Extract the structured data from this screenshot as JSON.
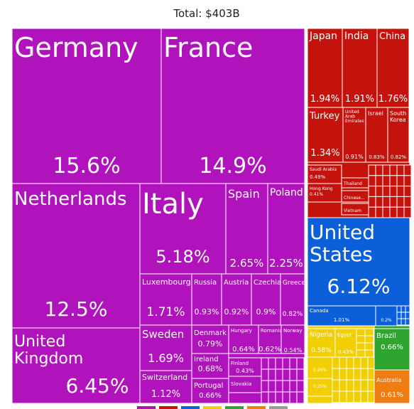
{
  "chart_data": {
    "type": "treemap",
    "title": "Total: $403B",
    "colors": {
      "Europe": "#b012bc",
      "Asia": "#c4130d",
      "North America": "#0b5fd8",
      "Africa": "#f2cf00",
      "South America": "#2ea52e",
      "Oceania": "#f07d12"
    },
    "items": [
      {
        "name": "Germany",
        "region": "Europe",
        "share": 15.6,
        "share_label": "15.6%"
      },
      {
        "name": "France",
        "region": "Europe",
        "share": 14.9,
        "share_label": "14.9%"
      },
      {
        "name": "Netherlands",
        "region": "Europe",
        "share": 12.5,
        "share_label": "12.5%"
      },
      {
        "name": "United Kingdom",
        "region": "Europe",
        "share": 6.45,
        "share_label": "6.45%"
      },
      {
        "name": "Italy",
        "region": "Europe",
        "share": 5.18,
        "share_label": "5.18%"
      },
      {
        "name": "Spain",
        "region": "Europe",
        "share": 2.65,
        "share_label": "2.65%"
      },
      {
        "name": "Poland",
        "region": "Europe",
        "share": 2.25,
        "share_label": "2.25%"
      },
      {
        "name": "Luxembourg",
        "region": "Europe",
        "share": 1.71,
        "share_label": "1.71%"
      },
      {
        "name": "Russia",
        "region": "Europe",
        "share": 0.93,
        "share_label": "0.93%"
      },
      {
        "name": "Austria",
        "region": "Europe",
        "share": 0.92,
        "share_label": "0.92%"
      },
      {
        "name": "Czechia",
        "region": "Europe",
        "share": 0.9,
        "share_label": "0.9%"
      },
      {
        "name": "Greece",
        "region": "Europe",
        "share": 0.82,
        "share_label": "0.82%"
      },
      {
        "name": "Sweden",
        "region": "Europe",
        "share": 1.69,
        "share_label": "1.69%"
      },
      {
        "name": "Denmark",
        "region": "Europe",
        "share": 0.79,
        "share_label": "0.79%"
      },
      {
        "name": "Hungary",
        "region": "Europe",
        "share": 0.64,
        "share_label": "0.64%"
      },
      {
        "name": "Romania",
        "region": "Europe",
        "share": 0.62,
        "share_label": "0.62%"
      },
      {
        "name": "Norway",
        "region": "Europe",
        "share": 0.54,
        "share_label": "0.54%"
      },
      {
        "name": "Ireland",
        "region": "Europe",
        "share": 0.68,
        "share_label": "0.68%"
      },
      {
        "name": "Finland",
        "region": "Europe",
        "share": 0.43,
        "share_label": "0.43%"
      },
      {
        "name": "Switzerland",
        "region": "Europe",
        "share": 1.12,
        "share_label": "1.12%"
      },
      {
        "name": "Portugal",
        "region": "Europe",
        "share": 0.66,
        "share_label": "0.66%"
      },
      {
        "name": "Slovakia",
        "region": "Europe",
        "share": null,
        "share_label": ""
      },
      {
        "name": "Japan",
        "region": "Asia",
        "share": 1.94,
        "share_label": "1.94%"
      },
      {
        "name": "India",
        "region": "Asia",
        "share": 1.91,
        "share_label": "1.91%"
      },
      {
        "name": "China",
        "region": "Asia",
        "share": 1.76,
        "share_label": "1.76%"
      },
      {
        "name": "Turkey",
        "region": "Asia",
        "share": 1.34,
        "share_label": "1.34%"
      },
      {
        "name": "United Arab Emirates",
        "region": "Asia",
        "share": 0.91,
        "share_label": "0.91%"
      },
      {
        "name": "Israel",
        "region": "Asia",
        "share": 0.83,
        "share_label": "0.83%"
      },
      {
        "name": "South Korea",
        "region": "Asia",
        "share": 0.82,
        "share_label": "0.82%"
      },
      {
        "name": "Saudi Arabia",
        "region": "Asia",
        "share": 0.49,
        "share_label": "0.49%"
      },
      {
        "name": "Hong Kong",
        "region": "Asia",
        "share": 0.41,
        "share_label": "0.41%"
      },
      {
        "name": "Thailand",
        "region": "Asia",
        "share": null,
        "share_label": ""
      },
      {
        "name": "Chinese...",
        "region": "Asia",
        "share": null,
        "share_label": ""
      },
      {
        "name": "Vietnam",
        "region": "Asia",
        "share": null,
        "share_label": ""
      },
      {
        "name": "United States",
        "region": "North America",
        "share": 6.12,
        "share_label": "6.12%"
      },
      {
        "name": "Canada",
        "region": "North America",
        "share": 1.01,
        "share_label": "1.01%"
      },
      {
        "name": "",
        "region": "North America",
        "share": 0.2,
        "share_label": "0.2%"
      },
      {
        "name": "Nigeria",
        "region": "Africa",
        "share": 0.58,
        "share_label": "0.58%"
      },
      {
        "name": "Egypt",
        "region": "Africa",
        "share": 0.43,
        "share_label": "0.43%"
      },
      {
        "name": "",
        "region": "Africa",
        "share": 0.26,
        "share_label": "0.26%"
      },
      {
        "name": "",
        "region": "Africa",
        "share": 0.25,
        "share_label": "0.25%"
      },
      {
        "name": "Brazil",
        "region": "South America",
        "share": 0.66,
        "share_label": "0.66%"
      },
      {
        "name": "Australia",
        "region": "Oceania",
        "share": 0.61,
        "share_label": "0.61%"
      }
    ]
  }
}
